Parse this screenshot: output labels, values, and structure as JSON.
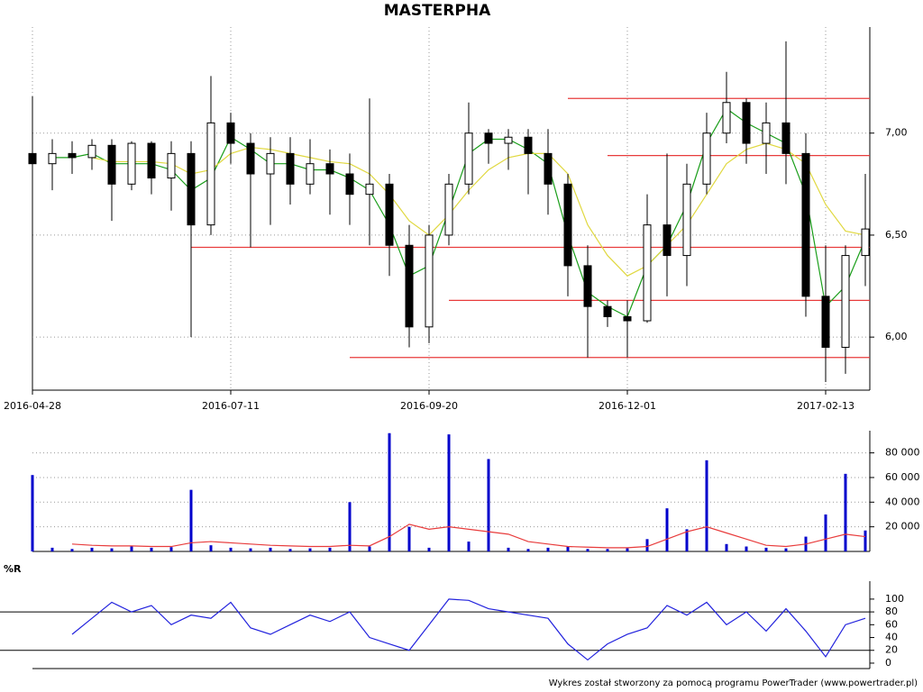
{
  "chart_data": [
    {
      "type": "candlestick",
      "title": "MASTERPHA",
      "x": [
        "2016-04-28",
        "2016-05-06",
        "2016-05-13",
        "2016-05-20",
        "2016-05-27",
        "2016-06-03",
        "2016-06-10",
        "2016-06-17",
        "2016-06-24",
        "2016-07-01",
        "2016-07-11",
        "2016-07-18",
        "2016-07-26",
        "2016-08-02",
        "2016-08-09",
        "2016-08-17",
        "2016-08-24",
        "2016-08-31",
        "2016-09-07",
        "2016-09-14",
        "2016-09-20",
        "2016-09-27",
        "2016-10-04",
        "2016-10-11",
        "2016-10-18",
        "2016-10-25",
        "2016-11-02",
        "2016-11-09",
        "2016-11-16",
        "2016-11-23",
        "2016-12-01",
        "2016-12-08",
        "2016-12-15",
        "2016-12-22",
        "2016-12-30",
        "2017-01-09",
        "2017-01-16",
        "2017-01-23",
        "2017-01-30",
        "2017-02-06",
        "2017-02-13",
        "2017-02-20",
        "2017-02-27"
      ],
      "ohlc": [
        [
          6.9,
          7.18,
          6.35,
          6.85
        ],
        [
          6.85,
          6.97,
          6.72,
          6.9
        ],
        [
          6.9,
          6.96,
          6.8,
          6.88
        ],
        [
          6.88,
          6.97,
          6.82,
          6.94
        ],
        [
          6.94,
          6.97,
          6.57,
          6.75
        ],
        [
          6.75,
          6.96,
          6.72,
          6.95
        ],
        [
          6.95,
          6.96,
          6.7,
          6.78
        ],
        [
          6.78,
          6.96,
          6.62,
          6.9
        ],
        [
          6.9,
          6.96,
          6.0,
          6.55
        ],
        [
          6.55,
          7.28,
          6.5,
          7.05
        ],
        [
          7.05,
          7.1,
          6.85,
          6.95
        ],
        [
          6.95,
          7.0,
          6.44,
          6.8
        ],
        [
          6.8,
          6.98,
          6.55,
          6.9
        ],
        [
          6.9,
          6.98,
          6.65,
          6.75
        ],
        [
          6.75,
          6.97,
          6.7,
          6.85
        ],
        [
          6.85,
          6.92,
          6.6,
          6.8
        ],
        [
          6.8,
          6.9,
          6.55,
          6.7
        ],
        [
          6.7,
          7.17,
          6.45,
          6.75
        ],
        [
          6.75,
          6.8,
          6.3,
          6.45
        ],
        [
          6.45,
          6.55,
          5.95,
          6.05
        ],
        [
          6.05,
          6.55,
          5.97,
          6.5
        ],
        [
          6.5,
          6.8,
          6.45,
          6.75
        ],
        [
          6.75,
          7.15,
          6.7,
          7.0
        ],
        [
          7.0,
          7.02,
          6.85,
          6.95
        ],
        [
          6.95,
          7.02,
          6.82,
          6.98
        ],
        [
          6.98,
          7.02,
          6.7,
          6.9
        ],
        [
          6.9,
          7.02,
          6.6,
          6.75
        ],
        [
          6.75,
          6.8,
          6.2,
          6.35
        ],
        [
          6.35,
          6.45,
          5.9,
          6.15
        ],
        [
          6.15,
          6.18,
          6.05,
          6.1
        ],
        [
          6.1,
          6.18,
          5.9,
          6.08
        ],
        [
          6.08,
          6.7,
          6.07,
          6.55
        ],
        [
          6.55,
          6.9,
          6.2,
          6.4
        ],
        [
          6.4,
          6.85,
          6.25,
          6.75
        ],
        [
          6.75,
          7.1,
          6.7,
          7.0
        ],
        [
          7.0,
          7.3,
          6.95,
          7.15
        ],
        [
          7.15,
          7.17,
          6.85,
          6.95
        ],
        [
          6.95,
          7.15,
          6.8,
          7.05
        ],
        [
          7.05,
          7.45,
          6.75,
          6.9
        ],
        [
          6.9,
          7.0,
          6.1,
          6.2
        ],
        [
          6.2,
          6.45,
          5.78,
          5.95
        ],
        [
          5.95,
          6.45,
          5.82,
          6.4
        ],
        [
          6.4,
          6.8,
          6.25,
          6.53
        ]
      ],
      "up_color": "#ffffff",
      "down_color": "#000000",
      "series": [
        {
          "color": "#1a9e1a",
          "values": [
            null,
            6.88,
            6.88,
            6.9,
            6.85,
            6.85,
            6.85,
            6.82,
            6.72,
            6.78,
            6.98,
            6.92,
            6.85,
            6.85,
            6.82,
            6.82,
            6.78,
            6.72,
            6.55,
            6.3,
            6.35,
            6.62,
            6.9,
            6.97,
            6.97,
            6.92,
            6.85,
            6.5,
            6.22,
            6.15,
            6.1,
            6.35,
            6.45,
            6.65,
            6.95,
            7.12,
            7.05,
            7.0,
            6.95,
            6.7,
            6.15,
            6.25,
            6.48
          ]
        },
        {
          "color": "#e0d840",
          "values": [
            null,
            null,
            null,
            6.88,
            6.86,
            6.86,
            6.86,
            6.85,
            6.8,
            6.82,
            6.9,
            6.93,
            6.92,
            6.9,
            6.88,
            6.86,
            6.85,
            6.8,
            6.7,
            6.57,
            6.5,
            6.6,
            6.72,
            6.82,
            6.88,
            6.9,
            6.9,
            6.8,
            6.55,
            6.4,
            6.3,
            6.35,
            6.45,
            6.55,
            6.7,
            6.85,
            6.92,
            6.95,
            6.92,
            6.85,
            6.65,
            6.52,
            6.5
          ]
        }
      ],
      "levels": [
        {
          "value": 7.17,
          "from": "2016-11-09"
        },
        {
          "value": 6.89,
          "from": "2016-11-23"
        },
        {
          "value": 6.44,
          "from": "2016-06-24"
        },
        {
          "value": 6.18,
          "from": "2016-09-27"
        },
        {
          "value": 5.9,
          "from": "2016-08-24"
        }
      ],
      "level_color": "#e83c3c",
      "xticks": [
        "2016-04-28",
        "2016-07-11",
        "2016-09-20",
        "2016-12-01",
        "2017-02-13"
      ],
      "ylim": [
        5.74,
        7.52
      ],
      "yticks": [
        {
          "value": 6,
          "label": "6,00"
        },
        {
          "value": 6.5,
          "label": "6,50"
        },
        {
          "value": 7,
          "label": "7,00"
        }
      ],
      "grid": true
    },
    {
      "type": "bar",
      "color": "#0000cc",
      "values": [
        62000,
        3000,
        2000,
        3000,
        2500,
        4000,
        3000,
        3500,
        50000,
        5000,
        3000,
        2500,
        3000,
        2000,
        2500,
        3000,
        40000,
        4000,
        96000,
        20000,
        3000,
        95000,
        8000,
        75000,
        3000,
        2000,
        3000,
        4000,
        2000,
        2000,
        2500,
        10000,
        35000,
        18000,
        74000,
        6000,
        4000,
        3000,
        2500,
        12000,
        30000,
        63000,
        17000
      ],
      "series": [
        {
          "color": "#e83c3c",
          "values": [
            null,
            null,
            6000,
            5000,
            4500,
            4500,
            4000,
            4000,
            7000,
            8000,
            7000,
            6000,
            5000,
            4500,
            4000,
            4000,
            5000,
            4500,
            12000,
            22000,
            18000,
            20000,
            18000,
            16000,
            14000,
            8000,
            6000,
            4000,
            3500,
            3000,
            3000,
            4000,
            10000,
            16000,
            20000,
            15000,
            10000,
            5000,
            4000,
            6000,
            10000,
            14000,
            12000
          ]
        }
      ],
      "ylim": [
        0,
        98000
      ],
      "yticks": [
        {
          "value": 20000,
          "label": "20 000"
        },
        {
          "value": 40000,
          "label": "40 000"
        },
        {
          "value": 60000,
          "label": "60 000"
        },
        {
          "value": 80000,
          "label": "80 000"
        }
      ],
      "grid": true
    },
    {
      "type": "line",
      "title": "%R",
      "color": "#2222dd",
      "values": [
        null,
        null,
        45,
        70,
        95,
        80,
        90,
        60,
        75,
        70,
        95,
        55,
        45,
        60,
        75,
        65,
        80,
        40,
        30,
        20,
        60,
        100,
        98,
        85,
        80,
        75,
        70,
        30,
        5,
        30,
        45,
        55,
        90,
        75,
        95,
        60,
        80,
        50,
        85,
        50,
        10,
        60,
        70
      ],
      "levels": [
        20,
        80
      ],
      "ylim": [
        -8.5,
        128
      ],
      "yticks": [
        0,
        20,
        40,
        60,
        80,
        100
      ]
    }
  ],
  "footer": "Wykres został stworzony za pomocą programu PowerTrader (www.powertrader.pl)"
}
